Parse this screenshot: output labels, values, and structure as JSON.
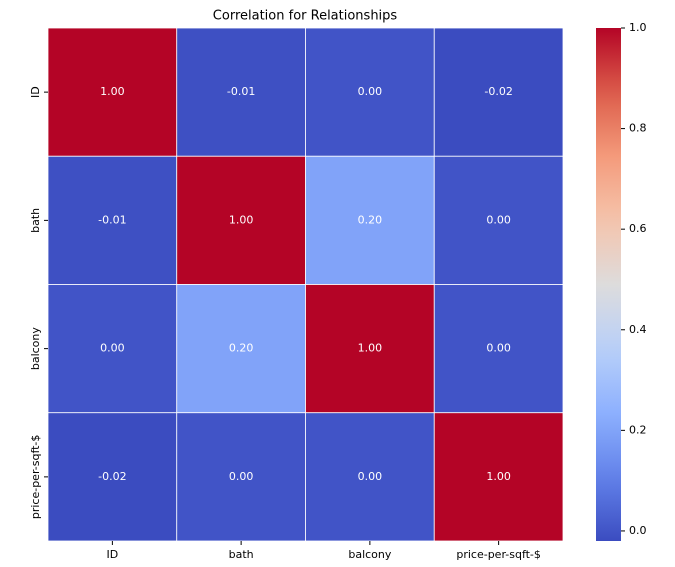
{
  "chart_data": {
    "type": "heatmap",
    "title": "Correlation for Relationships",
    "categories": [
      "ID",
      "bath",
      "balcony",
      "price-per-sqft-$"
    ],
    "values": [
      [
        1,
        -0.01,
        0,
        -0.02
      ],
      [
        -0.01,
        1,
        0.2,
        0
      ],
      [
        0,
        0.2,
        1,
        0
      ],
      [
        -0.02,
        0,
        0,
        1
      ]
    ],
    "value_labels": [
      [
        "1.00",
        "-0.01",
        "0.00",
        "-0.02"
      ],
      [
        "-0.01",
        "1.00",
        "0.20",
        "0.00"
      ],
      [
        "0.00",
        "0.20",
        "1.00",
        "0.00"
      ],
      [
        "-0.02",
        "0.00",
        "0.00",
        "1.00"
      ]
    ],
    "colormap": "coolwarm",
    "clim": [
      -0.02,
      1
    ],
    "cticks": [
      {
        "value": 0,
        "label": "0.0"
      },
      0.2,
      0.4,
      0.6,
      0.8,
      {
        "value": 1,
        "label": "1.0"
      }
    ]
  }
}
